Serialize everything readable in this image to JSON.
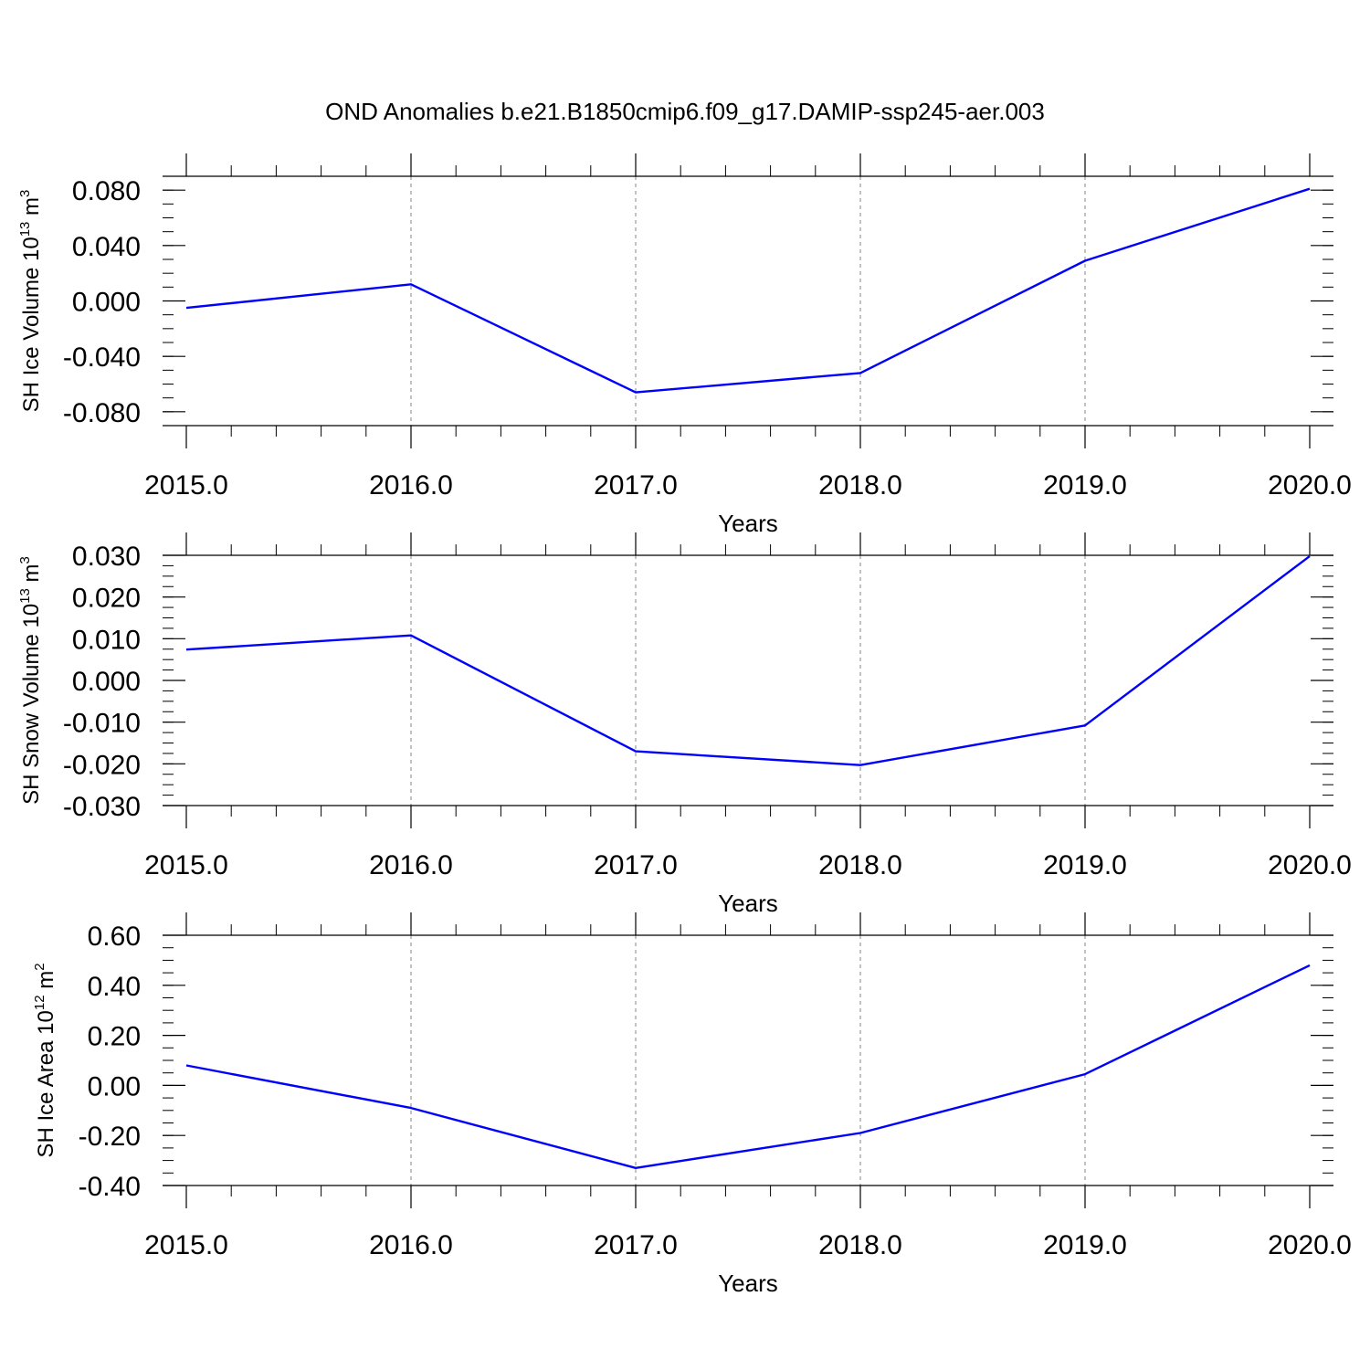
{
  "figure": {
    "title": "OND Anomalies b.e21.B1850cmip6.f09_g17.DAMIP-ssp245-aer.003"
  },
  "chart_data": [
    {
      "type": "line",
      "ylabel_text": "SH Ice Volume 10",
      "ylabel_exp": "13",
      "ylabel_unit": " m",
      "ylabel_unit_exp": "3",
      "xlabel": "Years",
      "xlim": [
        2015,
        2020
      ],
      "ylim": [
        -0.09,
        0.09
      ],
      "x_ticks": [
        2015,
        2016,
        2017,
        2018,
        2019,
        2020
      ],
      "x_tick_labels": [
        "2015.0",
        "2016.0",
        "2017.0",
        "2018.0",
        "2019.0",
        "2020.0"
      ],
      "x_minor_step": 0.2,
      "y_ticks": [
        -0.08,
        -0.04,
        0.0,
        0.04,
        0.08
      ],
      "y_tick_labels": [
        "-0.080",
        "-0.040",
        "0.000",
        "0.040",
        "0.080"
      ],
      "y_minor_step": 0.01,
      "grid": "vertical dashed at major x ticks",
      "line_color": "#0000ff",
      "series": [
        {
          "x": [
            2015,
            2016,
            2017,
            2018,
            2019,
            2020
          ],
          "values": [
            -0.005,
            0.012,
            -0.066,
            -0.052,
            0.029,
            0.081
          ]
        }
      ]
    },
    {
      "type": "line",
      "ylabel_text": "SH Snow Volume 10",
      "ylabel_exp": "13",
      "ylabel_unit": " m",
      "ylabel_unit_exp": "3",
      "xlabel": "Years",
      "xlim": [
        2015,
        2020
      ],
      "ylim": [
        -0.03,
        0.03
      ],
      "x_ticks": [
        2015,
        2016,
        2017,
        2018,
        2019,
        2020
      ],
      "x_tick_labels": [
        "2015.0",
        "2016.0",
        "2017.0",
        "2018.0",
        "2019.0",
        "2020.0"
      ],
      "x_minor_step": 0.2,
      "y_ticks": [
        -0.03,
        -0.02,
        -0.01,
        0.0,
        0.01,
        0.02,
        0.03
      ],
      "y_tick_labels": [
        "-0.030",
        "-0.020",
        "-0.010",
        "0.000",
        "0.010",
        "0.020",
        "0.030"
      ],
      "y_minor_step": 0.0025,
      "grid": "vertical dashed at major x ticks",
      "line_color": "#0000ff",
      "series": [
        {
          "x": [
            2015,
            2016,
            2017,
            2018,
            2019,
            2020
          ],
          "values": [
            0.0074,
            0.0108,
            -0.017,
            -0.0203,
            -0.0108,
            0.0298
          ]
        }
      ]
    },
    {
      "type": "line",
      "ylabel_text": "SH Ice Area 10",
      "ylabel_exp": "12",
      "ylabel_unit": " m",
      "ylabel_unit_exp": "2",
      "xlabel": "Years",
      "xlim": [
        2015,
        2020
      ],
      "ylim": [
        -0.4,
        0.6
      ],
      "x_ticks": [
        2015,
        2016,
        2017,
        2018,
        2019,
        2020
      ],
      "x_tick_labels": [
        "2015.0",
        "2016.0",
        "2017.0",
        "2018.0",
        "2019.0",
        "2020.0"
      ],
      "x_minor_step": 0.2,
      "y_ticks": [
        -0.4,
        -0.2,
        0.0,
        0.2,
        0.4,
        0.6
      ],
      "y_tick_labels": [
        "-0.40",
        "-0.20",
        "0.00",
        "0.20",
        "0.40",
        "0.60"
      ],
      "y_minor_step": 0.05,
      "grid": "vertical dashed at major x ticks",
      "line_color": "#0000ff",
      "series": [
        {
          "x": [
            2015,
            2016,
            2017,
            2018,
            2019,
            2020
          ],
          "values": [
            0.08,
            -0.09,
            -0.33,
            -0.19,
            0.045,
            0.48
          ]
        }
      ]
    }
  ]
}
